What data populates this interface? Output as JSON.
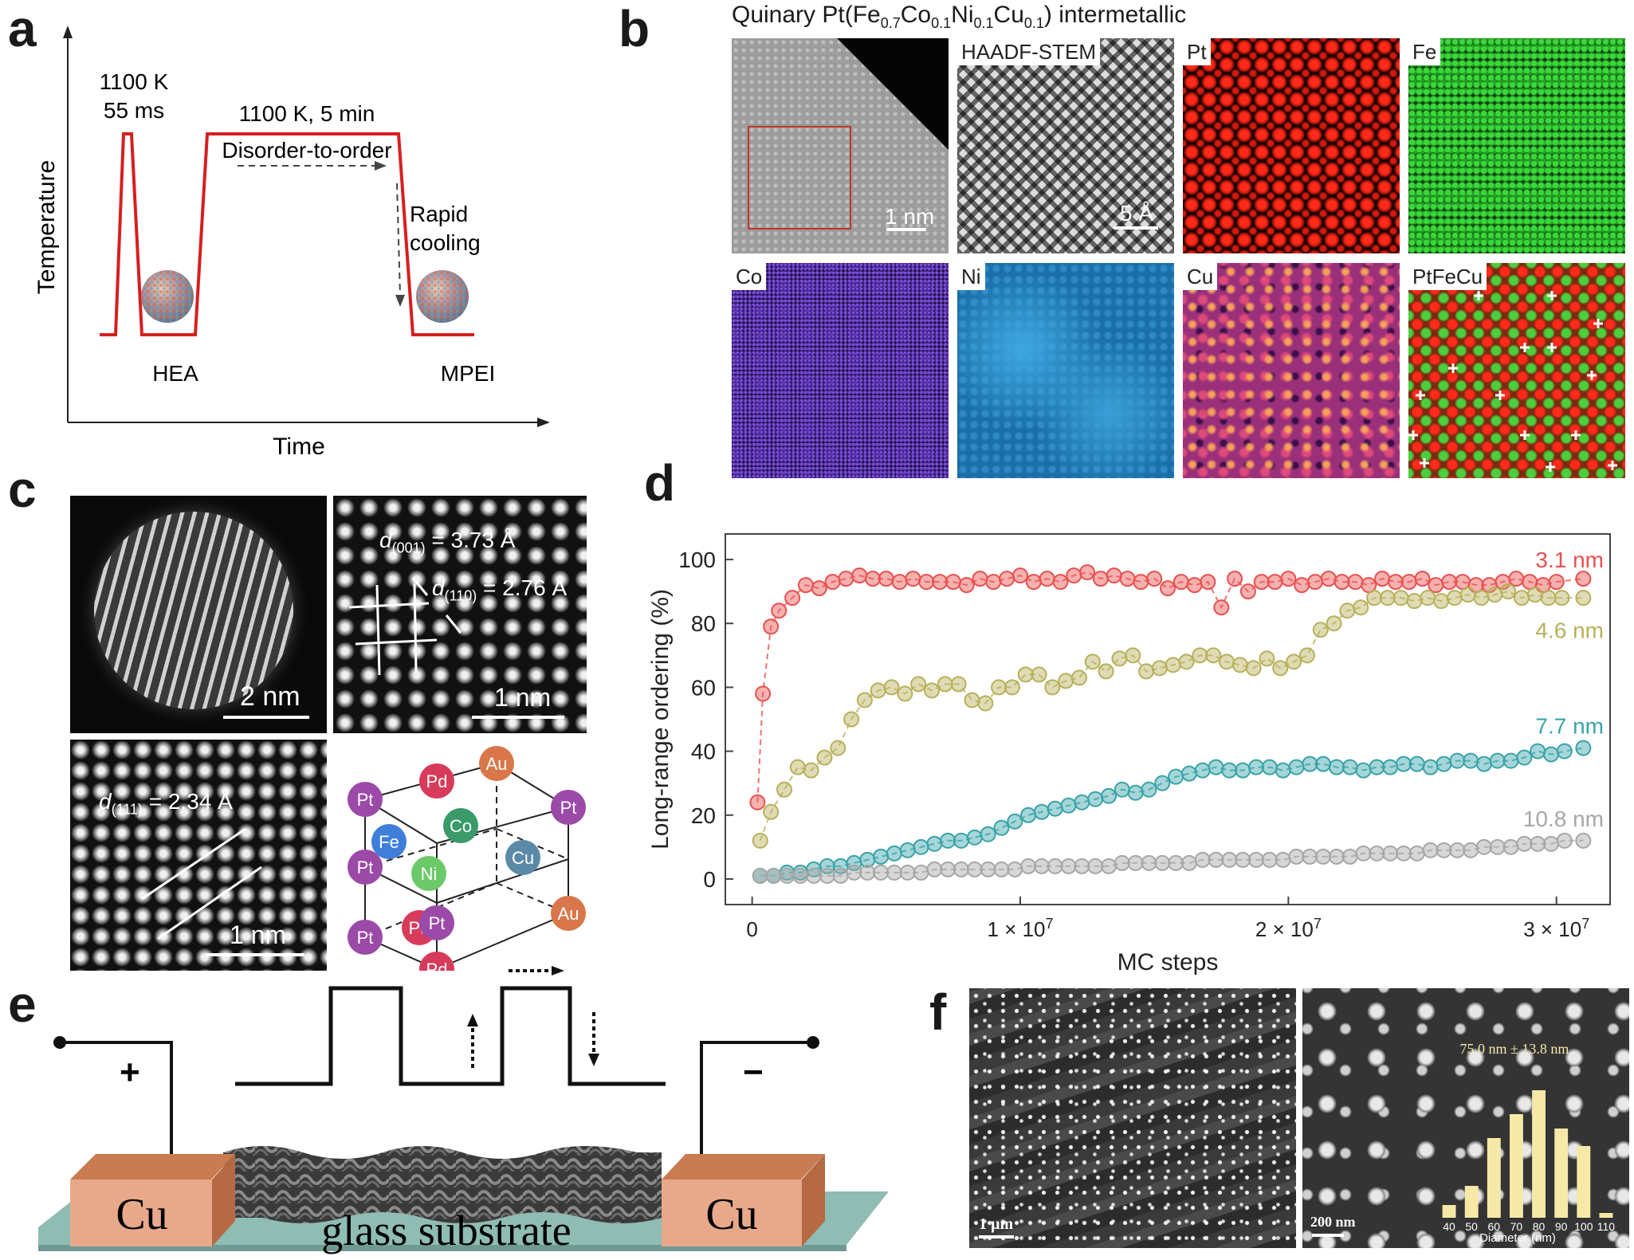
{
  "panels": {
    "a": {
      "letter": "a",
      "ylabel": "Temperature",
      "xlabel": "Time",
      "pulse_temp": "1100 K",
      "pulse_time": "55 ms",
      "anneal": "1100 K, 5 min",
      "order": "Disorder-to-order",
      "rapid": "Rapid",
      "cooling": "cooling",
      "hea": "HEA",
      "mpei": "MPEI"
    },
    "b": {
      "letter": "b",
      "title_prefix": "Quinary Pt(Fe",
      "sub_fe": "0.7",
      "co": "Co",
      "sub_co": "0.1",
      "ni": "Ni",
      "sub_ni": "0.1",
      "cu": "Cu",
      "sub_cu": "0.1",
      "title_suffix": ") intermetallic",
      "tiles": [
        "HAADF-STEM",
        "Pt",
        "Fe",
        "Co",
        "Ni",
        "Cu",
        "PtFeCu"
      ],
      "scale_1nm": "1 nm",
      "scale_5a": "5 Å"
    },
    "c": {
      "letter": "c",
      "scale_2nm": "2 nm",
      "scale_1nm": "1 nm",
      "d001_pre": "d",
      "d001_sub": "(001)",
      "d001_val": " = 3.73 Å",
      "d110_pre": "d",
      "d110_sub": "(110)",
      "d110_val": " = 2.76 Å",
      "d111_pre": "d",
      "d111_sub": "(111)",
      "d111_val": " = 2.34 Å",
      "atoms": [
        "Pt",
        "Pd",
        "Au",
        "Pt",
        "Pt",
        "Fe",
        "Co",
        "Cu",
        "Ni",
        "Pd",
        "Au",
        "Pt",
        "Pt",
        "Pd"
      ]
    },
    "d": {
      "letter": "d"
    },
    "e": {
      "letter": "e",
      "plus": "+",
      "minus": "−",
      "cu_left": "Cu",
      "cu_right": "Cu",
      "substrate": "glass substrate"
    },
    "f": {
      "letter": "f",
      "scale_1um": "1 µm",
      "scale_200nm": "200 nm",
      "inset_label": "75.0 nm ± 13.8 nm",
      "inset_xlabel": "Diameter (nm)",
      "inset_ticks": [
        "40",
        "50",
        "60",
        "70",
        "80",
        "90",
        "100",
        "110"
      ],
      "inset_bars": [
        0.08,
        0.2,
        0.5,
        0.65,
        0.8,
        0.56,
        0.45,
        0.03
      ]
    }
  },
  "chart_data": {
    "type": "scatter",
    "xlabel": "MC steps",
    "ylabel": "Long-range ordering (%)",
    "xlim": [
      -1000000,
      32000000
    ],
    "ylim": [
      -8,
      108
    ],
    "xticks": [
      0,
      10000000,
      20000000,
      30000000
    ],
    "xtick_labels": [
      "0",
      "1 × 10",
      "2 × 10",
      "3 × 10"
    ],
    "xtick_exp": "7",
    "yticks": [
      0,
      20,
      40,
      60,
      80,
      100
    ],
    "series": [
      {
        "name": "3.1 nm",
        "color": "#e8514f",
        "x": [
          200000,
          400000,
          700000,
          1000000,
          1500000,
          2000000,
          2500000,
          3000000,
          3500000,
          4000000,
          4500000,
          5000000,
          5500000,
          6000000,
          6500000,
          7000000,
          7500000,
          8000000,
          8500000,
          9000000,
          9500000,
          10000000,
          10500000,
          11000000,
          11500000,
          12000000,
          12500000,
          13000000,
          13500000,
          14000000,
          14500000,
          15000000,
          15500000,
          16000000,
          16500000,
          17000000,
          17500000,
          18000000,
          18500000,
          19000000,
          19500000,
          20000000,
          20500000,
          21000000,
          21500000,
          22000000,
          22500000,
          23000000,
          23500000,
          24000000,
          24500000,
          25000000,
          25500000,
          26000000,
          26500000,
          27000000,
          27500000,
          28000000,
          28500000,
          29000000,
          29500000,
          30000000,
          31000000
        ],
        "y": [
          24,
          58,
          79,
          84,
          88,
          92,
          91,
          93,
          94,
          95,
          94,
          94,
          93,
          94,
          93,
          93,
          93,
          92,
          94,
          93,
          94,
          95,
          93,
          94,
          93,
          95,
          96,
          94,
          95,
          94,
          93,
          94,
          91,
          93,
          92,
          93,
          85,
          94,
          90,
          93,
          93,
          94,
          92,
          93,
          94,
          93,
          93,
          92,
          94,
          93,
          93,
          94,
          92,
          93,
          93,
          92,
          92,
          93,
          94,
          93,
          92,
          93,
          94
        ]
      },
      {
        "name": "4.6 nm",
        "color": "#b8b05a",
        "x": [
          300000,
          700000,
          1200000,
          1700000,
          2200000,
          2700000,
          3200000,
          3700000,
          4200000,
          4700000,
          5200000,
          5700000,
          6200000,
          6700000,
          7200000,
          7700000,
          8200000,
          8700000,
          9200000,
          9700000,
          10200000,
          10700000,
          11200000,
          11700000,
          12200000,
          12700000,
          13200000,
          13700000,
          14200000,
          14700000,
          15200000,
          15700000,
          16200000,
          16700000,
          17200000,
          17700000,
          18200000,
          18700000,
          19200000,
          19700000,
          20200000,
          20700000,
          21200000,
          21700000,
          22200000,
          22700000,
          23200000,
          23700000,
          24200000,
          24700000,
          25200000,
          25700000,
          26200000,
          26700000,
          27200000,
          27700000,
          28200000,
          28700000,
          29200000,
          29700000,
          30200000,
          31000000
        ],
        "y": [
          12,
          21,
          28,
          35,
          34,
          38,
          41,
          50,
          56,
          59,
          60,
          58,
          61,
          59,
          61,
          61,
          56,
          55,
          60,
          60,
          64,
          64,
          60,
          62,
          63,
          68,
          65,
          69,
          70,
          65,
          66,
          67,
          68,
          70,
          70,
          68,
          67,
          66,
          69,
          66,
          68,
          70,
          78,
          80,
          84,
          85,
          88,
          88,
          88,
          87,
          88,
          87,
          88,
          89,
          88,
          89,
          90,
          88,
          89,
          88,
          88,
          88
        ]
      },
      {
        "name": "7.7 nm",
        "color": "#3aa3a8",
        "x": [
          300000,
          800000,
          1300000,
          1800000,
          2300000,
          2800000,
          3300000,
          3800000,
          4300000,
          4800000,
          5300000,
          5800000,
          6300000,
          6800000,
          7300000,
          7800000,
          8300000,
          8800000,
          9300000,
          9800000,
          10300000,
          10800000,
          11300000,
          11800000,
          12300000,
          12800000,
          13300000,
          13800000,
          14300000,
          14800000,
          15300000,
          15800000,
          16300000,
          16800000,
          17300000,
          17800000,
          18300000,
          18800000,
          19300000,
          19800000,
          20300000,
          20800000,
          21300000,
          21800000,
          22300000,
          22800000,
          23300000,
          23800000,
          24300000,
          24800000,
          25300000,
          25800000,
          26300000,
          26800000,
          27300000,
          27800000,
          28300000,
          28800000,
          29300000,
          29800000,
          30300000,
          31000000
        ],
        "y": [
          1,
          1,
          2,
          2,
          3,
          4,
          4,
          5,
          6,
          7,
          8,
          9,
          10,
          11,
          12,
          12,
          13,
          14,
          16,
          18,
          20,
          21,
          22,
          23,
          24,
          25,
          26,
          28,
          27,
          28,
          30,
          32,
          33,
          34,
          35,
          34,
          34,
          35,
          35,
          34,
          35,
          36,
          36,
          35,
          35,
          34,
          35,
          35,
          36,
          36,
          35,
          36,
          37,
          37,
          36,
          37,
          37,
          38,
          40,
          39,
          40,
          41
        ]
      },
      {
        "name": "10.8 nm",
        "color": "#a7a7a7",
        "x": [
          300000,
          800000,
          1300000,
          1800000,
          2300000,
          2800000,
          3300000,
          3800000,
          4300000,
          4800000,
          5300000,
          5800000,
          6300000,
          6800000,
          7300000,
          7800000,
          8300000,
          8800000,
          9300000,
          9800000,
          10300000,
          10800000,
          11300000,
          11800000,
          12300000,
          12800000,
          13300000,
          13800000,
          14300000,
          14800000,
          15300000,
          15800000,
          16300000,
          16800000,
          17300000,
          17800000,
          18300000,
          18800000,
          19300000,
          19800000,
          20300000,
          20800000,
          21300000,
          21800000,
          22300000,
          22800000,
          23300000,
          23800000,
          24300000,
          24800000,
          25300000,
          25800000,
          26300000,
          26800000,
          27300000,
          27800000,
          28300000,
          28800000,
          29300000,
          29800000,
          30300000,
          31000000
        ],
        "y": [
          1,
          1,
          1,
          1,
          1,
          1,
          1,
          2,
          2,
          2,
          2,
          2,
          2,
          3,
          3,
          3,
          3,
          3,
          3,
          3,
          4,
          4,
          4,
          4,
          4,
          4,
          4,
          5,
          5,
          5,
          5,
          5,
          5,
          6,
          6,
          6,
          6,
          6,
          6,
          6,
          7,
          7,
          7,
          7,
          7,
          8,
          8,
          8,
          8,
          8,
          9,
          9,
          9,
          9,
          10,
          10,
          10,
          11,
          11,
          11,
          12,
          12
        ]
      }
    ]
  }
}
